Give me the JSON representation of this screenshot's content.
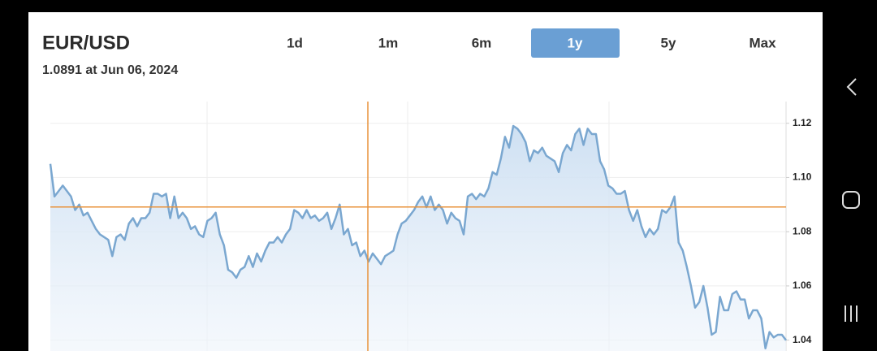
{
  "header": {
    "title": "EUR/USD",
    "subtitle": "1.0891 at Jun 06, 2024"
  },
  "range_tabs": [
    {
      "label": "1d"
    },
    {
      "label": "1m"
    },
    {
      "label": "6m"
    },
    {
      "label": "1y",
      "selected": true
    },
    {
      "label": "5y"
    },
    {
      "label": "Max"
    }
  ],
  "chart_data": {
    "type": "line",
    "color": "#7aa7d0",
    "area": true,
    "grid": true,
    "crosshair_value": 1.0891,
    "crosshair_color": "#e8923a",
    "ylim": [
      1.036,
      1.128
    ],
    "yticks": [
      1.04,
      1.06,
      1.08,
      {
        "value": 1.1,
        "label": "1.10"
      },
      1.12
    ],
    "values": [
      1.105,
      1.093,
      1.095,
      1.097,
      1.095,
      1.093,
      1.088,
      1.09,
      1.086,
      1.087,
      1.084,
      1.081,
      1.079,
      1.078,
      1.077,
      1.071,
      1.078,
      1.079,
      1.077,
      1.083,
      1.085,
      1.082,
      1.085,
      1.085,
      1.087,
      1.094,
      1.094,
      1.093,
      1.094,
      1.085,
      1.093,
      1.085,
      1.087,
      1.085,
      1.081,
      1.082,
      1.079,
      1.078,
      1.084,
      1.085,
      1.087,
      1.079,
      1.075,
      1.066,
      1.065,
      1.063,
      1.066,
      1.067,
      1.071,
      1.067,
      1.072,
      1.069,
      1.073,
      1.076,
      1.076,
      1.078,
      1.076,
      1.079,
      1.081,
      1.088,
      1.087,
      1.085,
      1.088,
      1.085,
      1.086,
      1.084,
      1.085,
      1.087,
      1.081,
      1.085,
      1.09,
      1.079,
      1.081,
      1.075,
      1.076,
      1.071,
      1.073,
      1.069,
      1.072,
      1.07,
      1.068,
      1.071,
      1.072,
      1.073,
      1.079,
      1.083,
      1.084,
      1.086,
      1.088,
      1.091,
      1.093,
      1.089,
      1.093,
      1.088,
      1.09,
      1.088,
      1.083,
      1.087,
      1.085,
      1.084,
      1.079,
      1.093,
      1.094,
      1.092,
      1.094,
      1.093,
      1.096,
      1.102,
      1.101,
      1.107,
      1.115,
      1.111,
      1.119,
      1.118,
      1.116,
      1.113,
      1.106,
      1.11,
      1.109,
      1.111,
      1.108,
      1.107,
      1.106,
      1.102,
      1.109,
      1.112,
      1.11,
      1.116,
      1.118,
      1.112,
      1.118,
      1.116,
      1.116,
      1.106,
      1.103,
      1.097,
      1.096,
      1.094,
      1.094,
      1.095,
      1.088,
      1.084,
      1.088,
      1.082,
      1.078,
      1.081,
      1.079,
      1.081,
      1.088,
      1.087,
      1.089,
      1.093,
      1.076,
      1.073,
      1.067,
      1.06,
      1.052,
      1.054,
      1.06,
      1.052,
      1.042,
      1.043,
      1.056,
      1.051,
      1.051,
      1.057,
      1.058,
      1.055,
      1.055,
      1.048,
      1.051,
      1.051,
      1.048,
      1.037,
      1.043,
      1.041,
      1.042,
      1.042,
      1.04
    ]
  }
}
